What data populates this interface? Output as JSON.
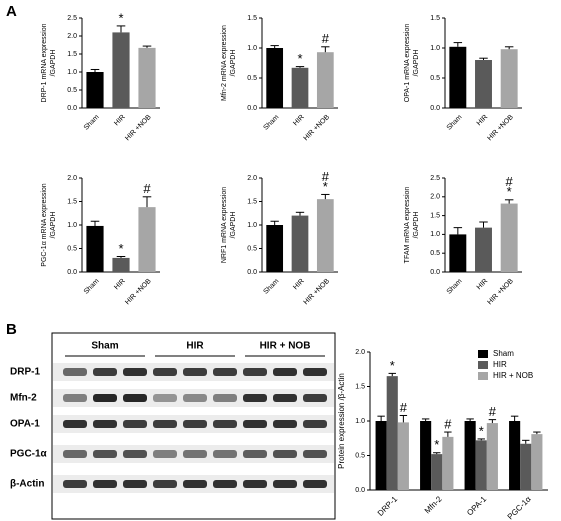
{
  "panel_labels": [
    "A",
    "B"
  ],
  "blot": {
    "groups": [
      "Sham",
      "HIR",
      "HIR + NOB"
    ],
    "rows": [
      "DRP-1",
      "Mfn-2",
      "OPA-1",
      "PGC-1α",
      "β-Actin"
    ]
  },
  "chart_data": [
    {
      "type": "bar",
      "ylabel": [
        "DRP-1 mRNA expression",
        "/GAPDH"
      ],
      "categories": [
        "Sham",
        "HIR",
        "HIR +NOB"
      ],
      "values": [
        1.0,
        2.1,
        1.67
      ],
      "errors": [
        0.07,
        0.18,
        0.05
      ],
      "colors": [
        "#000000",
        "#5a5a5a",
        "#a6a6a6"
      ],
      "ylim": [
        0,
        2.5
      ],
      "yticks": [
        {
          "value": 0,
          "label": "0.0"
        },
        {
          "value": 0.5,
          "label": "0.5"
        },
        {
          "value": 1,
          "label": "1.0"
        },
        {
          "value": 1.5,
          "label": "1.5"
        },
        {
          "value": 2,
          "label": "2.0"
        },
        {
          "value": 2.5,
          "label": "2.5"
        }
      ],
      "annotations": [
        {
          "text": "*",
          "category": 1
        }
      ]
    },
    {
      "type": "bar",
      "ylabel": [
        "Mfn-2 mRNA expression",
        "/GAPDH"
      ],
      "categories": [
        "Sham",
        "HIR",
        "HIR +NOB"
      ],
      "values": [
        1.0,
        0.67,
        0.93
      ],
      "errors": [
        0.04,
        0.02,
        0.09
      ],
      "colors": [
        "#000000",
        "#5a5a5a",
        "#a6a6a6"
      ],
      "ylim": [
        0,
        1.5
      ],
      "yticks": [
        {
          "value": 0,
          "label": "0.0"
        },
        {
          "value": 0.5,
          "label": "0.5"
        },
        {
          "value": 1,
          "label": "1.0"
        },
        {
          "value": 1.5,
          "label": "1.5"
        }
      ],
      "annotations": [
        {
          "text": "*",
          "category": 1
        },
        {
          "text": "#",
          "category": 2
        }
      ]
    },
    {
      "type": "bar",
      "ylabel": [
        "OPA-1 mRNA expression",
        "/GAPDH"
      ],
      "categories": [
        "Sham",
        "HIR",
        "HIR +NOB"
      ],
      "values": [
        1.02,
        0.8,
        0.98
      ],
      "errors": [
        0.07,
        0.03,
        0.04
      ],
      "colors": [
        "#000000",
        "#5a5a5a",
        "#a6a6a6"
      ],
      "ylim": [
        0,
        1.5
      ],
      "yticks": [
        {
          "value": 0,
          "label": "0.0"
        },
        {
          "value": 0.5,
          "label": "0.5"
        },
        {
          "value": 1,
          "label": "1.0"
        },
        {
          "value": 1.5,
          "label": "1.5"
        }
      ],
      "annotations": []
    },
    {
      "type": "bar",
      "ylabel": [
        "PGC-1α mRNA expression",
        "/GAPDH"
      ],
      "categories": [
        "Sham",
        "HIR",
        "HIR +NOB"
      ],
      "values": [
        0.98,
        0.3,
        1.38
      ],
      "errors": [
        0.1,
        0.03,
        0.22
      ],
      "colors": [
        "#000000",
        "#5a5a5a",
        "#a6a6a6"
      ],
      "ylim": [
        0,
        2
      ],
      "yticks": [
        {
          "value": 0,
          "label": "0.0"
        },
        {
          "value": 0.5,
          "label": "0.5"
        },
        {
          "value": 1,
          "label": "1.0"
        },
        {
          "value": 1.5,
          "label": "1.5"
        },
        {
          "value": 2,
          "label": "2.0"
        }
      ],
      "annotations": [
        {
          "text": "*",
          "category": 1
        },
        {
          "text": "#",
          "category": 2
        }
      ]
    },
    {
      "type": "bar",
      "ylabel": [
        "NRF1 mRNA expression",
        "/GAPDH"
      ],
      "categories": [
        "Sham",
        "HIR",
        "HIR +NOB"
      ],
      "values": [
        1.0,
        1.2,
        1.55
      ],
      "errors": [
        0.08,
        0.07,
        0.1
      ],
      "colors": [
        "#000000",
        "#5a5a5a",
        "#a6a6a6"
      ],
      "ylim": [
        0,
        2
      ],
      "yticks": [
        {
          "value": 0,
          "label": "0.0"
        },
        {
          "value": 0.5,
          "label": "0.5"
        },
        {
          "value": 1,
          "label": "1.0"
        },
        {
          "value": 1.5,
          "label": "1.5"
        },
        {
          "value": 2,
          "label": "2.0"
        }
      ],
      "annotations": [
        {
          "text": "*",
          "category": 2
        },
        {
          "text": "#",
          "category": 2
        }
      ]
    },
    {
      "type": "bar",
      "ylabel": [
        "TFAM mRNA expression",
        "/GAPDH"
      ],
      "categories": [
        "Sham",
        "HIR",
        "HIR +NOB"
      ],
      "values": [
        1.0,
        1.18,
        1.82
      ],
      "errors": [
        0.18,
        0.15,
        0.1
      ],
      "colors": [
        "#000000",
        "#5a5a5a",
        "#a6a6a6"
      ],
      "ylim": [
        0,
        2.5
      ],
      "yticks": [
        {
          "value": 0,
          "label": "0.0"
        },
        {
          "value": 0.5,
          "label": "0.5"
        },
        {
          "value": 1,
          "label": "1.0"
        },
        {
          "value": 1.5,
          "label": "1.5"
        },
        {
          "value": 2,
          "label": "2.0"
        },
        {
          "value": 2.5,
          "label": "2.5"
        }
      ],
      "annotations": [
        {
          "text": "*",
          "category": 2
        },
        {
          "text": "#",
          "category": 2
        }
      ]
    },
    {
      "type": "grouped_bar",
      "ylabel": "Protein expression /β-Actin",
      "categories": [
        "DRP-1",
        "Mfn-2",
        "OPA-1",
        "PGC-1α"
      ],
      "series": [
        {
          "name": "Sham",
          "color": "#000000",
          "values": [
            1.0,
            1.0,
            1.0,
            1.0
          ],
          "errors": [
            0.07,
            0.03,
            0.03,
            0.07
          ]
        },
        {
          "name": "HIR",
          "color": "#5a5a5a",
          "values": [
            1.65,
            0.52,
            0.72,
            0.67
          ],
          "errors": [
            0.04,
            0.02,
            0.02,
            0.05
          ]
        },
        {
          "name": "HIR + NOB",
          "color": "#a6a6a6",
          "values": [
            0.98,
            0.77,
            0.97,
            0.81
          ],
          "errors": [
            0.1,
            0.07,
            0.05,
            0.03
          ]
        }
      ],
      "ylim": [
        0,
        2
      ],
      "yticks": [
        {
          "value": 0,
          "label": "0.0"
        },
        {
          "value": 0.5,
          "label": "0.5"
        },
        {
          "value": 1,
          "label": "1.0"
        },
        {
          "value": 1.5,
          "label": "1.5"
        },
        {
          "value": 2,
          "label": "2.0"
        }
      ],
      "legend": "upper right",
      "annotations": [
        {
          "text": "*",
          "series": 1,
          "category": 0
        },
        {
          "text": "#",
          "series": 2,
          "category": 0
        },
        {
          "text": "*",
          "series": 1,
          "category": 1
        },
        {
          "text": "#",
          "series": 2,
          "category": 1
        },
        {
          "text": "*",
          "series": 1,
          "category": 2
        },
        {
          "text": "#",
          "series": 2,
          "category": 2
        }
      ]
    }
  ]
}
